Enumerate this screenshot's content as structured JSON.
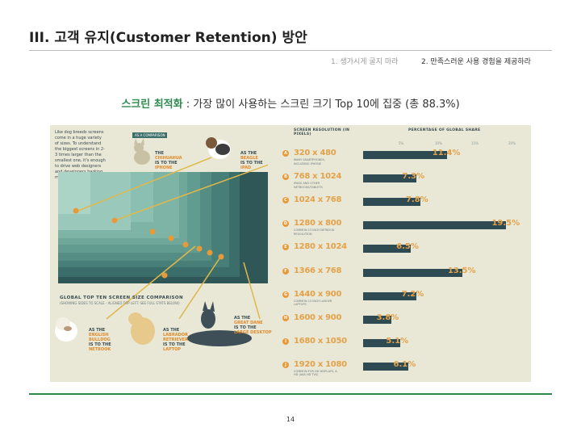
{
  "slide": {
    "title": "III. 고객 유지(Customer Retention) 방안",
    "crumb_1": "1. 생가시게 굴지 마라",
    "crumb_2": "2. 만족스러운 사용 경험을 제공하라",
    "headline_highlight": "스크린 최적화",
    "headline_rest": " : 가장 많이 사용하는 스크린 크기 Top 10에 집중 (총 88.3%)",
    "page_number": "14"
  },
  "infographic": {
    "note": "Like dog breeds screens come in a huge variety of sizes. To understand the biggest screens in 2-3 times larger than the smallest one, it's enough to drive web designers and developers barking mad!",
    "compare_tag": "AS A COMPARISON",
    "dog_labels": {
      "chihuahua": [
        "THE",
        "CHIHUAHUA",
        "IS TO THE",
        "IPHONE"
      ],
      "beagle": [
        "AS THE",
        "BEAGLE",
        "IS TO THE",
        "IPAD"
      ],
      "bulldog": [
        "AS THE",
        "ENGLISH",
        "BULLDOG",
        "IS TO THE",
        "NETBOOK"
      ],
      "labrador": [
        "AS THE",
        "LABRADOR",
        "RETRIEVER",
        "IS TO THE",
        "LAPTOP"
      ],
      "great_dane": [
        "AS THE",
        "GREAT DANE",
        "IS TO THE",
        "LARGE DESKTOP"
      ]
    },
    "screens_title": "GLOBAL TOP TEN SCREEN SIZE COMPARISON",
    "screens_sub": "(SHOWING SIDES TO SCALE - ALIGNED TOP LEFT. SEE FULL STATS BELOW)",
    "resolution_header": "SCREEN RESOLUTION (IN PIXELS)",
    "share_header": "PERCENTAGE OF GLOBAL SHARE",
    "ticks": [
      "5%",
      "10%",
      "15%",
      "20%"
    ],
    "colors": {
      "bar": "#2e4a52",
      "accent": "#e3a24a",
      "badge": "#e79a3a",
      "background": "#e9e8d6"
    }
  },
  "chart_data": {
    "type": "bar",
    "categories": [
      "320 x 480",
      "768 x 1024",
      "1024 x 768",
      "1280 x 800",
      "1280 x 1024",
      "1366 x 768",
      "1440 x 900",
      "1600 x 900",
      "1680 x 1050",
      "1920 x 1080"
    ],
    "badges": [
      "A",
      "B",
      "C",
      "D",
      "E",
      "F",
      "G",
      "H",
      "I",
      "J"
    ],
    "notes": [
      "MANY SMARTPHONES, INCLUDING IPHONE",
      "IPADS AND OTHER NETBOOKS/TABLETS",
      "",
      "COMMON 13 INCH NETBOOK RESOLUTION",
      "",
      "",
      "COMMON 15 INCH LARGER LAPTOPS",
      "",
      "",
      "COMMON FOR HD DISPLAYS, & HD (AKA HD TVS)"
    ],
    "values": [
      11.4,
      7.3,
      7.8,
      19.5,
      6.5,
      13.5,
      7.2,
      3.8,
      5.1,
      6.1
    ],
    "labels": [
      "11.4",
      "7.3",
      "7.8",
      "19.5",
      "6.5",
      "13.5",
      "7.2",
      "3.8",
      "5.1",
      "6.1"
    ],
    "unit": "%",
    "xlim": [
      0,
      20
    ],
    "title": "PERCENTAGE OF GLOBAL SHARE"
  }
}
